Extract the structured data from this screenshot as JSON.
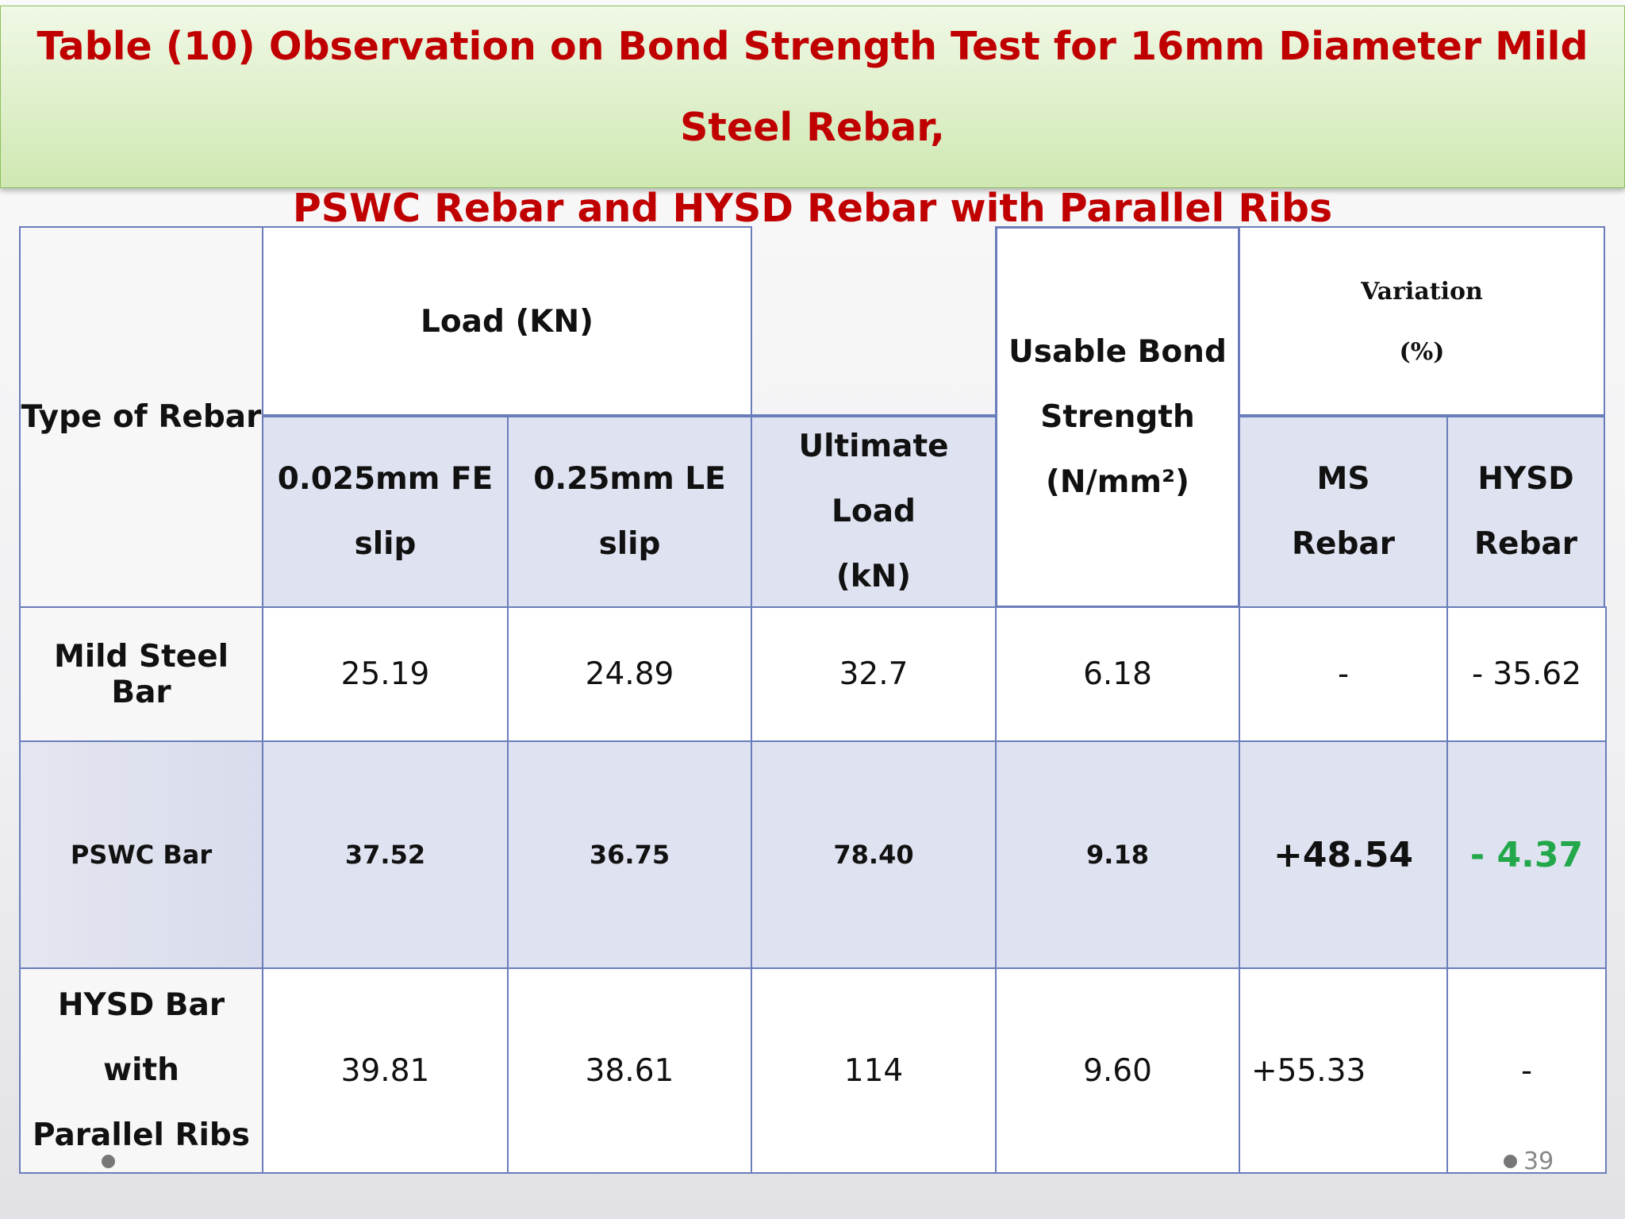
{
  "title": {
    "lines": [
      "Table (10) Observation on Bond Strength Test for 16mm Diameter Mild   Steel Rebar,",
      "PSWC Rebar and HYSD Rebar with Parallel Ribs"
    ]
  },
  "table": {
    "header": {
      "type": "Type of Rebar",
      "load": "Load (KN)",
      "fe_slip": [
        "0.025mm FE",
        "slip"
      ],
      "le_slip": [
        "0.25mm LE",
        "slip"
      ],
      "ultimate": [
        "Ultimate Load",
        "(kN)"
      ],
      "bond": [
        "Usable Bond",
        "Strength",
        "(N/mm²)"
      ],
      "variation": [
        "Variation",
        "(%)"
      ],
      "ms": [
        "MS",
        "Rebar"
      ],
      "hysd": [
        "HYSD",
        "Rebar"
      ]
    },
    "rows": [
      [
        "Mild Steel Bar",
        "25.19",
        "24.89",
        "32.7",
        "6.18",
        "-",
        "- 35.62"
      ],
      [
        "PSWC Bar",
        "37.52",
        "36.75",
        "78.40",
        "9.18",
        "+48.54",
        "- 4.37"
      ],
      [
        [
          "HYSD Bar with",
          "Parallel Ribs"
        ],
        "39.81",
        "38.61",
        "114",
        "9.60",
        "+55.33",
        "-"
      ]
    ]
  },
  "page_number": "39"
}
